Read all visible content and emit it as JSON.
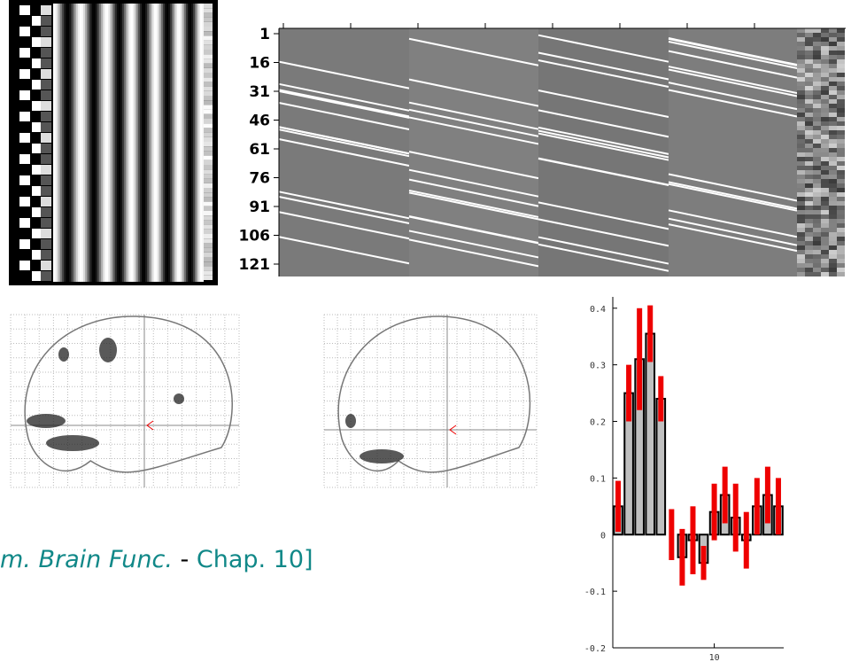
{
  "design_matrix": {
    "row_labels": [
      "1",
      "16",
      "31",
      "46",
      "61",
      "76",
      "91",
      "106",
      "121"
    ]
  },
  "caption": {
    "italic": "m. Brain Func.",
    "dash": "-",
    "rest": "Chap. 10]"
  },
  "chart_data": {
    "type": "bar",
    "series": [
      {
        "color": "#c0c0c0",
        "error_color": "#ee0000",
        "x": [
          1,
          2,
          3,
          4,
          5,
          6,
          7,
          8,
          9,
          10,
          11,
          12,
          13,
          14,
          15,
          16
        ],
        "values": [
          0.05,
          0.25,
          0.31,
          0.355,
          0.24,
          0,
          -0.04,
          -0.01,
          -0.05,
          0.04,
          0.07,
          0.03,
          -0.01,
          0.05,
          0.07,
          0.05
        ],
        "errors": [
          0.045,
          0.05,
          0.09,
          0.05,
          0.04,
          0.045,
          0.05,
          0.06,
          0.03,
          0.05,
          0.05,
          0.06,
          0.05,
          0.05,
          0.05,
          0.05
        ]
      }
    ],
    "xlim": [
      0.5,
      16.5
    ],
    "xticks": [
      10
    ],
    "ylim": [
      -0.2,
      0.42
    ],
    "yticks": [
      0.4,
      0.3,
      0.2,
      0.1,
      0,
      -0.1,
      -0.2
    ]
  }
}
